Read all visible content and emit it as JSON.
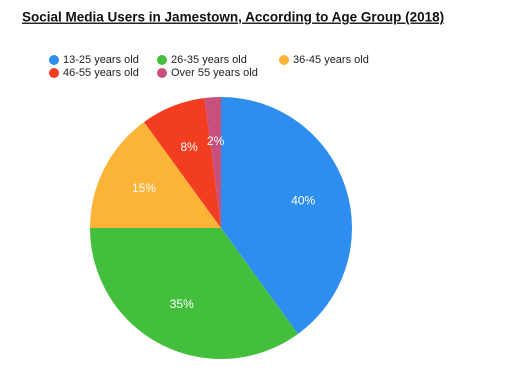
{
  "chart_data": {
    "type": "pie",
    "title": "Social Media Users in Jamestown, According to Age Group (2018)",
    "categories": [
      "13-25 years old",
      "26-35 years old",
      "36-45 years old",
      "46-55 years old",
      "Over 55 years old"
    ],
    "values": [
      40,
      35,
      15,
      8,
      2
    ],
    "value_labels": [
      "40%",
      "35%",
      "15%",
      "8%",
      "2%"
    ],
    "colors": [
      "#2e8ef0",
      "#44be3d",
      "#fbb338",
      "#f23d20",
      "#c9507c"
    ]
  }
}
